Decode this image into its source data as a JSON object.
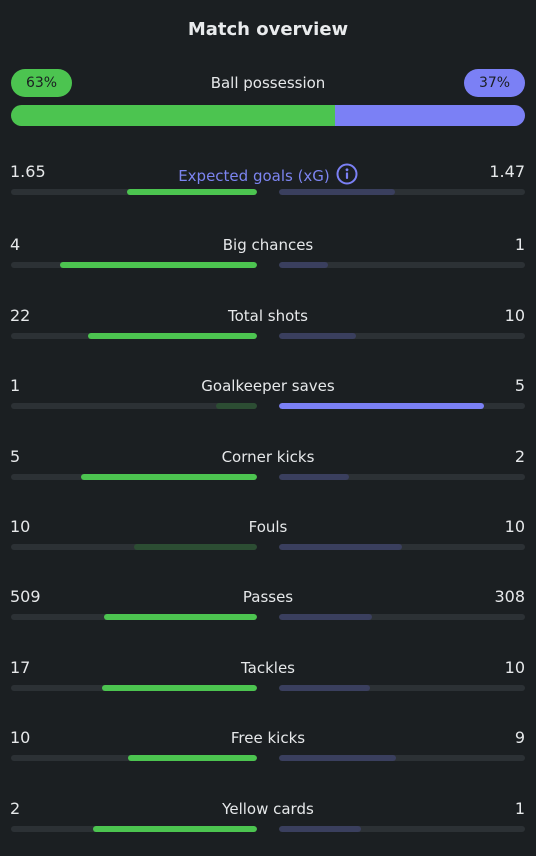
{
  "title": "Match overview",
  "colors": {
    "home_strong": "#4cc450",
    "home_weak": "#2c4d33",
    "away_strong": "#7b80f5",
    "away_weak": "#3a3f5e",
    "track": "#2c3135"
  },
  "possession": {
    "label": "Ball possession",
    "home_text": "63%",
    "away_text": "37%",
    "home_value": 63,
    "away_value": 37
  },
  "stats": [
    {
      "id": "xg",
      "label": "Expected goals (xG)",
      "home": "1.65",
      "away": "1.47",
      "home_value": 1.65,
      "away_value": 1.47,
      "link": true,
      "info_icon": "info-icon"
    },
    {
      "id": "big-chances",
      "label": "Big chances",
      "home": "4",
      "away": "1",
      "home_value": 4,
      "away_value": 1
    },
    {
      "id": "total-shots",
      "label": "Total shots",
      "home": "22",
      "away": "10",
      "home_value": 22,
      "away_value": 10
    },
    {
      "id": "goalkeeper-saves",
      "label": "Goalkeeper saves",
      "home": "1",
      "away": "5",
      "home_value": 1,
      "away_value": 5
    },
    {
      "id": "corner-kicks",
      "label": "Corner kicks",
      "home": "5",
      "away": "2",
      "home_value": 5,
      "away_value": 2
    },
    {
      "id": "fouls",
      "label": "Fouls",
      "home": "10",
      "away": "10",
      "home_value": 10,
      "away_value": 10
    },
    {
      "id": "passes",
      "label": "Passes",
      "home": "509",
      "away": "308",
      "home_value": 509,
      "away_value": 308
    },
    {
      "id": "tackles",
      "label": "Tackles",
      "home": "17",
      "away": "10",
      "home_value": 17,
      "away_value": 10
    },
    {
      "id": "free-kicks",
      "label": "Free kicks",
      "home": "10",
      "away": "9",
      "home_value": 10,
      "away_value": 9
    },
    {
      "id": "yellow-cards",
      "label": "Yellow cards",
      "home": "2",
      "away": "1",
      "home_value": 2,
      "away_value": 1
    }
  ]
}
